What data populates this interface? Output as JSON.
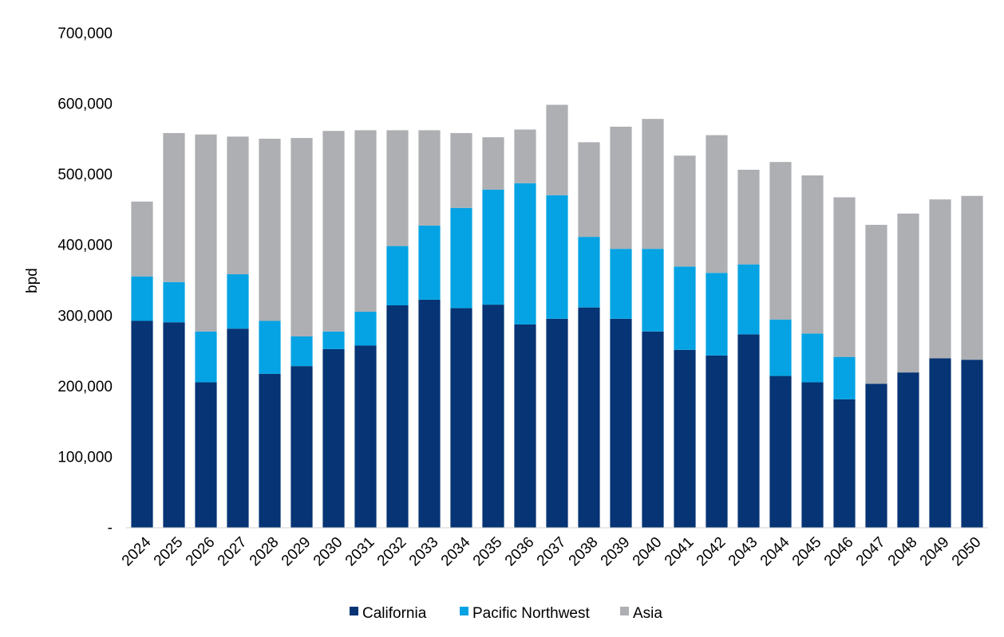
{
  "chart_data": {
    "type": "bar",
    "stacked": true,
    "title": "",
    "xlabel": "",
    "ylabel": "bpd",
    "ylim": [
      0,
      700000
    ],
    "y_ticks": [
      0,
      100000,
      200000,
      300000,
      400000,
      500000,
      600000,
      700000
    ],
    "y_tick_labels": [
      "-",
      "100,000",
      "200,000",
      "300,000",
      "400,000",
      "500,000",
      "600,000",
      "700,000"
    ],
    "grid": false,
    "legend_position": "bottom",
    "categories": [
      "2024",
      "2025",
      "2026",
      "2027",
      "2028",
      "2029",
      "2030",
      "2031",
      "2032",
      "2033",
      "2034",
      "2035",
      "2036",
      "2037",
      "2038",
      "2039",
      "2040",
      "2041",
      "2042",
      "2043",
      "2044",
      "2045",
      "2046",
      "2047",
      "2048",
      "2049",
      "2050"
    ],
    "series": [
      {
        "name": "California",
        "color": "#063474",
        "values": [
          293000,
          291000,
          206000,
          282000,
          218000,
          229000,
          253000,
          258000,
          315000,
          323000,
          311000,
          316000,
          288000,
          296000,
          312000,
          296000,
          278000,
          252000,
          244000,
          274000,
          215000,
          206000,
          182000,
          204000,
          220000,
          240000,
          238000
        ]
      },
      {
        "name": "Pacific Northwest",
        "color": "#05a3e3",
        "values": [
          63000,
          57000,
          72000,
          77000,
          75000,
          42000,
          25000,
          48000,
          84000,
          105000,
          142000,
          163000,
          200000,
          175000,
          100000,
          99000,
          117000,
          118000,
          117000,
          99000,
          80000,
          69000,
          60000,
          0,
          0,
          0,
          0
        ]
      },
      {
        "name": "Asia",
        "color": "#aeafb3",
        "values": [
          106000,
          211000,
          279000,
          195000,
          258000,
          281000,
          284000,
          257000,
          164000,
          135000,
          106000,
          74000,
          76000,
          128000,
          134000,
          173000,
          184000,
          157000,
          195000,
          134000,
          223000,
          224000,
          226000,
          225000,
          225000,
          225000,
          232000
        ]
      }
    ]
  }
}
